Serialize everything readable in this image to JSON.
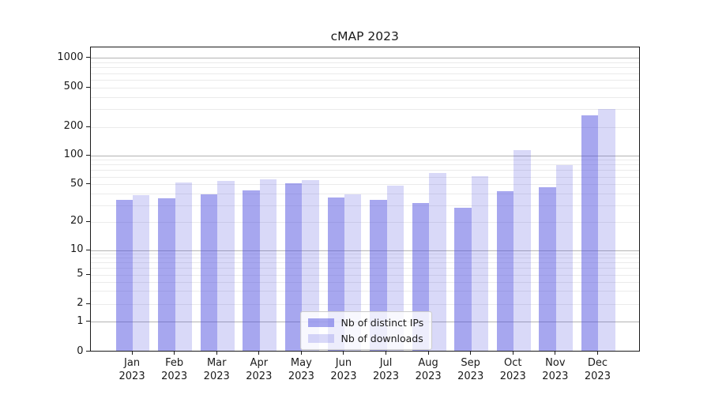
{
  "chart_data": {
    "type": "bar",
    "title": "cMAP 2023",
    "x_categories": [
      "Jan",
      "Feb",
      "Mar",
      "Apr",
      "May",
      "Jun",
      "Jul",
      "Aug",
      "Sep",
      "Oct",
      "Nov",
      "Dec"
    ],
    "x_year": "2023",
    "series": [
      {
        "name": "Nb of distinct IPs",
        "color": "#5050e0",
        "alpha": 0.5,
        "values": [
          34,
          35,
          39,
          43,
          51,
          36,
          34,
          31,
          28,
          42,
          46,
          260
        ]
      },
      {
        "name": "Nb of downloads",
        "color": "#5050e0",
        "alpha": 0.22,
        "values": [
          38,
          52,
          54,
          56,
          55,
          39,
          48,
          65,
          60,
          112,
          78,
          300
        ]
      }
    ],
    "yscale": "symlog",
    "yticks": [
      0,
      1,
      2,
      5,
      10,
      20,
      50,
      100,
      200,
      500,
      1000
    ],
    "ylim": [
      0,
      1200
    ],
    "grid": true,
    "legend_position": "lower center"
  },
  "colors": {
    "major_grid": "#b3b3b3",
    "minor_grid": "#ebebeb",
    "spine": "#1a1a1a",
    "text": "#1a1a1a",
    "background": "#ffffff",
    "legend_border": "#cccccc"
  }
}
